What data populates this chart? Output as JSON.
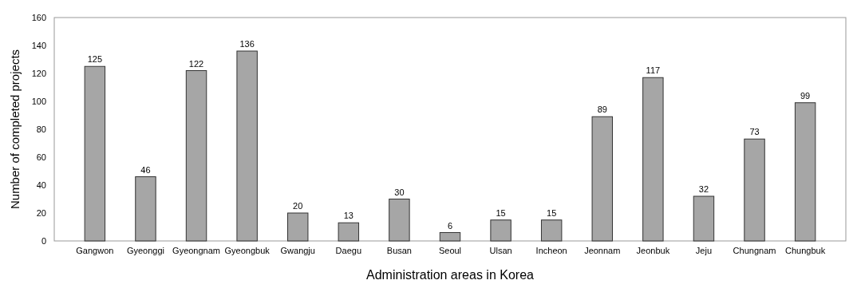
{
  "chart_data": {
    "type": "bar",
    "xlabel": "Administration areas in Korea",
    "ylabel": "Number of completed projects",
    "categories": [
      "Gangwon",
      "Gyeonggi",
      "Gyeongnam",
      "Gyeongbuk",
      "Gwangju",
      "Daegu",
      "Busan",
      "Seoul",
      "Ulsan",
      "Incheon",
      "Jeonnam",
      "Jeonbuk",
      "Jeju",
      "Chungnam",
      "Chungbuk"
    ],
    "values": [
      125,
      46,
      122,
      136,
      20,
      13,
      30,
      6,
      15,
      15,
      89,
      117,
      32,
      73,
      99
    ],
    "color": "#a6a6a6",
    "ylim": [
      0,
      160
    ],
    "yticks": [
      0,
      20,
      40,
      60,
      80,
      100,
      120,
      140,
      160
    ],
    "data_labels": true
  }
}
